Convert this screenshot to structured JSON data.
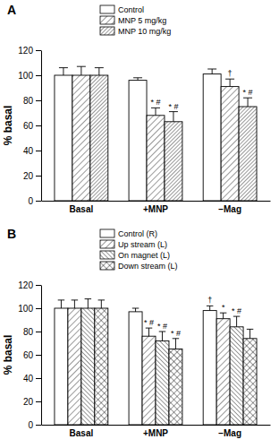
{
  "chart_data": [
    {
      "type": "bar",
      "title": "A",
      "y_label": "% basal",
      "categories": [
        "Basal",
        "+MNP",
        "−Mag"
      ],
      "ylim": [
        0,
        120
      ],
      "yticks": [
        0,
        20,
        40,
        60,
        80,
        100,
        120
      ],
      "legend": "top",
      "series": [
        {
          "name": "Control",
          "color": "#ffffff",
          "values": [
            100,
            96,
            101
          ],
          "errors": [
            6,
            2,
            4
          ],
          "annotations": [
            null,
            null,
            null
          ]
        },
        {
          "name": "MNP 5 mg/kg",
          "color": "#ffffff",
          "values": [
            100,
            68,
            91
          ],
          "errors": [
            7,
            6,
            6
          ],
          "annotations": [
            null,
            "* #",
            "†"
          ]
        },
        {
          "name": "MNP 10 mg/kg",
          "color": "#ffffff",
          "values": [
            100,
            63,
            75
          ],
          "errors": [
            6,
            8,
            7
          ],
          "annotations": [
            null,
            "* #",
            "* #"
          ]
        }
      ]
    },
    {
      "type": "bar",
      "title": "B",
      "y_label": "% basal",
      "categories": [
        "Basal",
        "+MNP",
        "−Mag"
      ],
      "ylim": [
        0,
        120
      ],
      "yticks": [
        0,
        20,
        40,
        60,
        80,
        100,
        120
      ],
      "legend": "top",
      "series": [
        {
          "name": "Control (R)",
          "color": "#ffffff",
          "values": [
            100,
            97,
            98
          ],
          "errors": [
            7,
            3,
            4
          ],
          "annotations": [
            null,
            null,
            "†"
          ]
        },
        {
          "name": "Up stream (L)",
          "color": "#ffffff",
          "values": [
            100,
            76,
            91
          ],
          "errors": [
            7,
            7,
            5
          ],
          "annotations": [
            null,
            "* #",
            "*"
          ]
        },
        {
          "name": "On magnet (L)",
          "color": "#ffffff",
          "values": [
            100,
            72,
            84
          ],
          "errors": [
            8,
            8,
            9
          ],
          "annotations": [
            null,
            "* #",
            "* #"
          ]
        },
        {
          "name": "Down stream (L)",
          "color": "#ffffff",
          "values": [
            100,
            65,
            74
          ],
          "errors": [
            7,
            9,
            8
          ],
          "annotations": [
            null,
            "* #",
            null
          ]
        }
      ]
    }
  ]
}
